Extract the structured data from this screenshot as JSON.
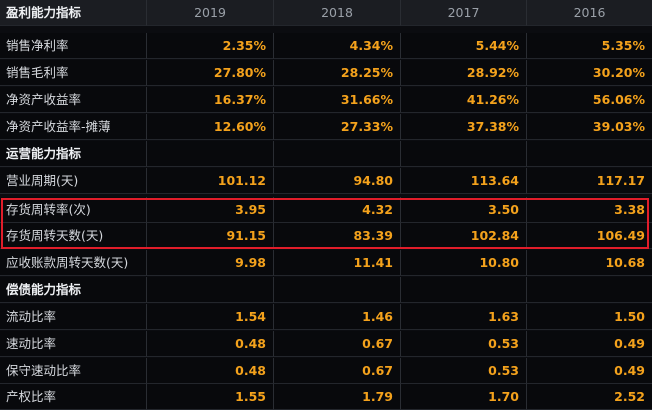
{
  "header": {
    "section_title": "盈利能力指标",
    "years": [
      "2019",
      "2018",
      "2017",
      "2016"
    ]
  },
  "rows": [
    {
      "label": "销售净利率",
      "values": [
        "2.35%",
        "4.34%",
        "5.44%",
        "5.35%"
      ]
    },
    {
      "label": "销售毛利率",
      "values": [
        "27.80%",
        "28.25%",
        "28.92%",
        "30.20%"
      ]
    },
    {
      "label": "净资产收益率",
      "values": [
        "16.37%",
        "31.66%",
        "41.26%",
        "56.06%"
      ]
    },
    {
      "label": "净资产收益率-摊薄",
      "values": [
        "12.60%",
        "27.33%",
        "37.38%",
        "39.03%"
      ]
    },
    {
      "label": "运营能力指标",
      "values": [
        "",
        "",
        "",
        ""
      ],
      "section": true
    },
    {
      "label": "营业周期(天)",
      "values": [
        "101.12",
        "94.80",
        "113.64",
        "117.17"
      ]
    },
    {
      "label": "存货周转率(次)",
      "values": [
        "3.95",
        "4.32",
        "3.50",
        "3.38"
      ]
    },
    {
      "label": "存货周转天数(天)",
      "values": [
        "91.15",
        "83.39",
        "102.84",
        "106.49"
      ]
    },
    {
      "label": "应收账款周转天数(天)",
      "values": [
        "9.98",
        "11.41",
        "10.80",
        "10.68"
      ]
    },
    {
      "label": "偿债能力指标",
      "values": [
        "",
        "",
        "",
        ""
      ],
      "section": true
    },
    {
      "label": "流动比率",
      "values": [
        "1.54",
        "1.46",
        "1.63",
        "1.50"
      ]
    },
    {
      "label": "速动比率",
      "values": [
        "0.48",
        "0.67",
        "0.53",
        "0.49"
      ]
    },
    {
      "label": "保守速动比率",
      "values": [
        "0.48",
        "0.67",
        "0.53",
        "0.49"
      ]
    },
    {
      "label": "产权比率",
      "values": [
        "1.55",
        "1.79",
        "1.70",
        "2.52"
      ]
    }
  ],
  "colors": {
    "value_text": "#f4a21c",
    "highlight_border": "#e11d2a",
    "header_bg": "#1b1d22",
    "row_bg": "#08090c"
  }
}
